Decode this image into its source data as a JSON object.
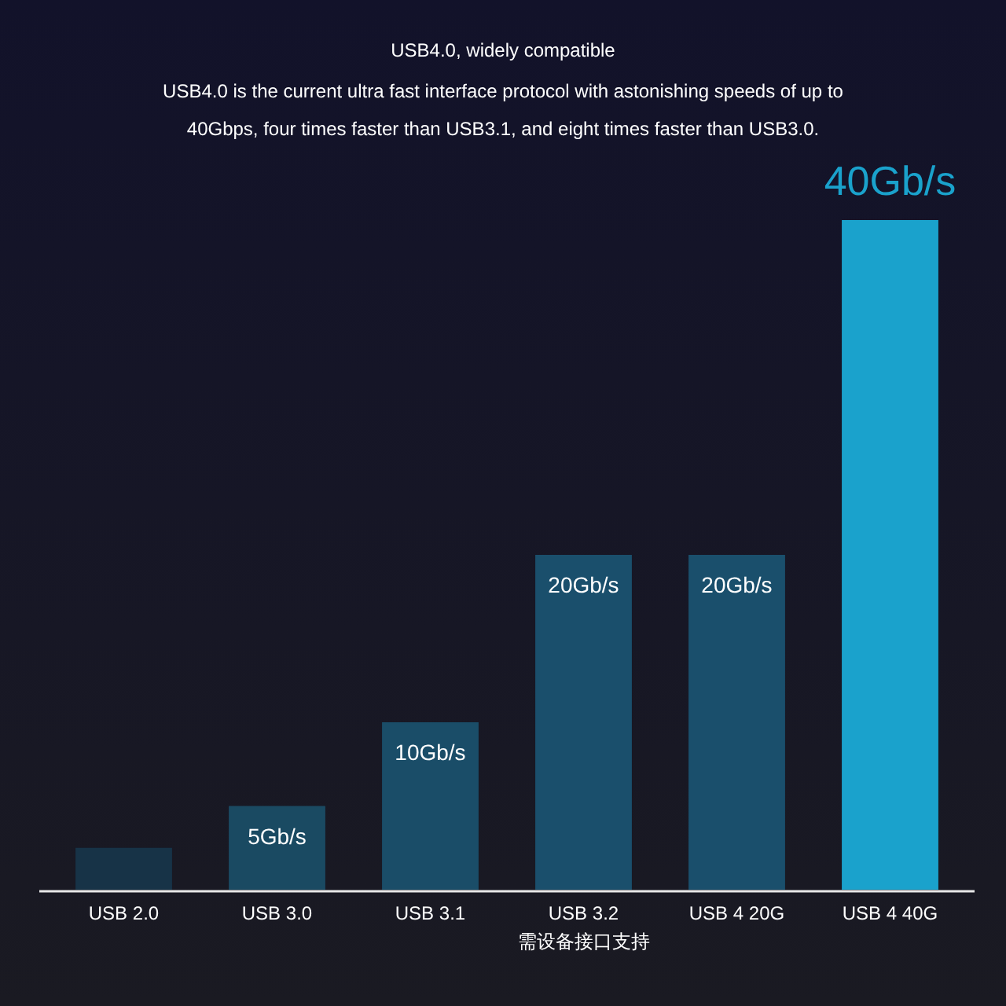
{
  "chart_data": {
    "type": "bar",
    "title": "USB4.0, widely compatible",
    "subtitle": "USB4.0 is the current ultra fast interface protocol with astonishing speeds of up to 40Gbps, four times faster than USB3.1, and eight times faster than USB3.0.",
    "categories": [
      "USB 2.0",
      "USB 3.0",
      "USB 3.1",
      "USB 3.2\n需设备接口支持",
      "USB 4 20G",
      "USB 4 40G"
    ],
    "values": [
      2.5,
      5,
      10,
      20,
      20,
      40
    ],
    "colors": [
      "#173347",
      "#1a4a62",
      "#1a4d68",
      "#1a4f6c",
      "#1a4f6c",
      "#1aa2cc"
    ],
    "value_labels": [
      null,
      "5Gb/s",
      "10Gb/s",
      "20Gb/s",
      "20Gb/s",
      "40Gb/s"
    ]
  }
}
